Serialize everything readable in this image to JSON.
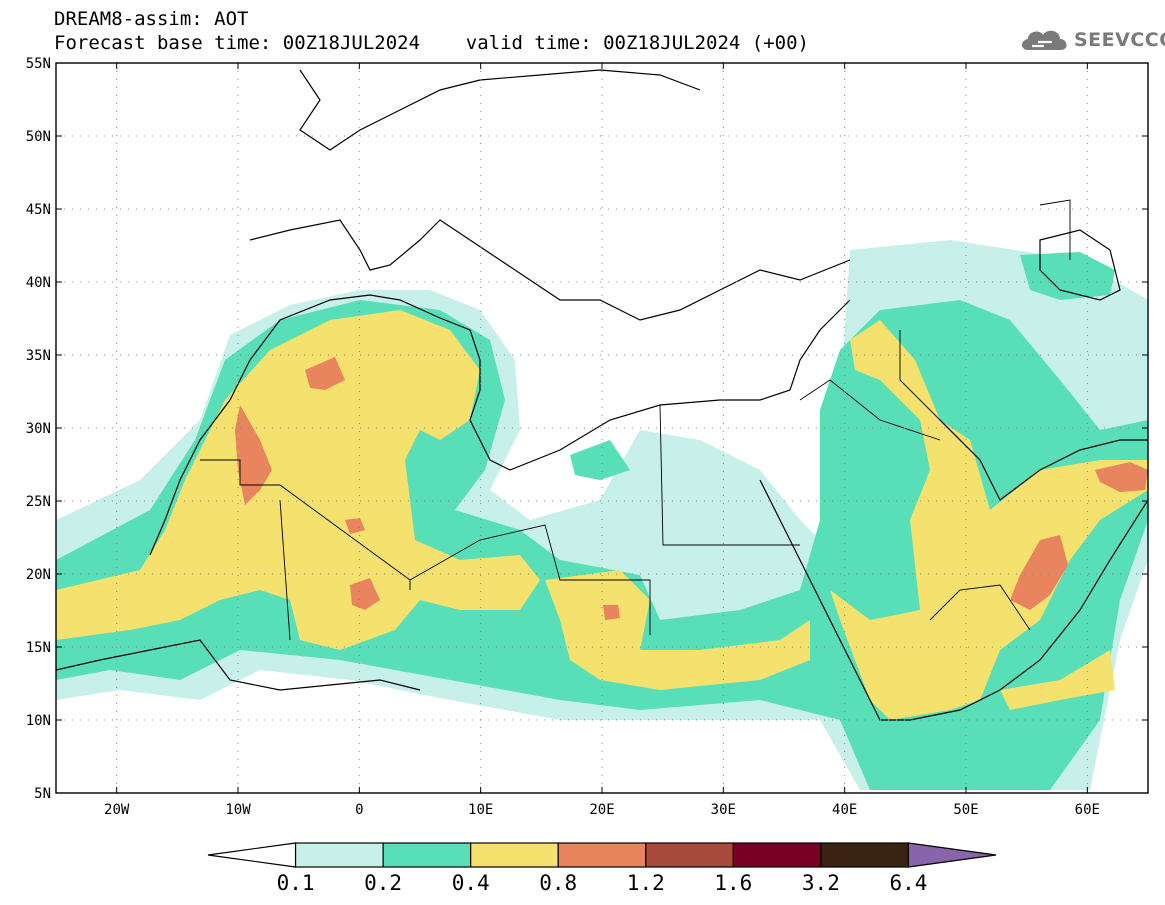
{
  "header": {
    "line1": "DREAM8-assim: AOT",
    "line2": "Forecast base time: 00Z18JUL2024    valid time: 00Z18JUL2024 (+00)"
  },
  "logo": {
    "text": "SEEVCCC",
    "icon": "cloud-icon",
    "color": "#7a7a7a"
  },
  "map": {
    "lon_range": [
      -25,
      65
    ],
    "lat_range": [
      5,
      55
    ],
    "lat_labels": [
      "5N",
      "10N",
      "15N",
      "20N",
      "25N",
      "30N",
      "35N",
      "40N",
      "45N",
      "50N",
      "55N"
    ],
    "lon_labels": [
      "20W",
      "10W",
      "0",
      "10E",
      "20E",
      "30E",
      "40E",
      "50E",
      "60E"
    ]
  },
  "colorbar": {
    "labels": [
      "0.1",
      "0.2",
      "0.4",
      "0.8",
      "1.2",
      "1.6",
      "3.2",
      "6.4"
    ],
    "colors": [
      "#ffffff",
      "#c8f0eb",
      "#58dfb8",
      "#f5e26e",
      "#e8855e",
      "#a84a3c",
      "#7a0025",
      "#3b2414",
      "#8a64aa"
    ]
  }
}
